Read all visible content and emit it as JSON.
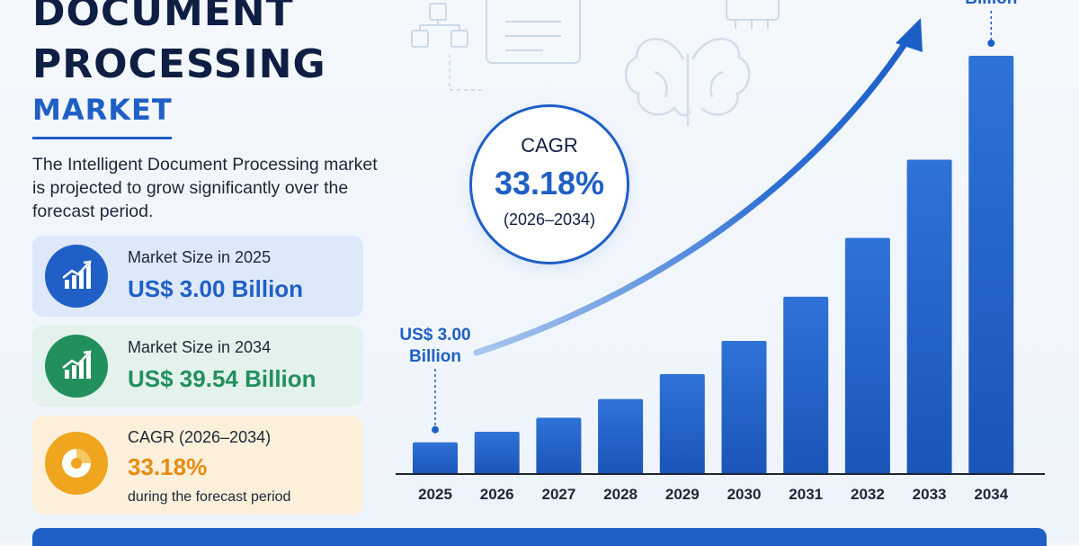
{
  "title": {
    "line1": "DOCUMENT",
    "line2": "PROCESSING",
    "line3": "MARKET"
  },
  "description": "The Intelligent Document Processing market is projected to grow significantly over the forecast period.",
  "cards": [
    {
      "label": "Market Size in 2025",
      "value": "US$ 3.00 Billion",
      "icon": "bar-growth-icon",
      "color": "#1f5fc6"
    },
    {
      "label": "Market Size in 2034",
      "value": "US$ 39.54 Billion",
      "icon": "bar-growth-icon",
      "color": "#22905c"
    },
    {
      "label": "CAGR (2026–2034)",
      "value": "33.18%",
      "note": "during the forecast period",
      "icon": "pie-chart-icon",
      "color": "#f0a51e"
    }
  ],
  "cagr_badge": {
    "title": "CAGR",
    "value": "33.18%",
    "period": "(2026–2034)"
  },
  "chart_data": {
    "type": "bar",
    "categories": [
      "2025",
      "2026",
      "2027",
      "2028",
      "2029",
      "2030",
      "2031",
      "2032",
      "2033",
      "2034"
    ],
    "values": [
      3.0,
      4.0,
      5.33,
      7.09,
      9.45,
      12.58,
      16.76,
      22.32,
      29.72,
      39.54
    ],
    "annotations": [
      {
        "category": "2025",
        "text": [
          "US$ 3.00",
          "Billion"
        ]
      },
      {
        "category": "2034",
        "text": [
          "Billion"
        ]
      }
    ],
    "trend_arrow": true,
    "bar_color": "#1f5fc6"
  }
}
